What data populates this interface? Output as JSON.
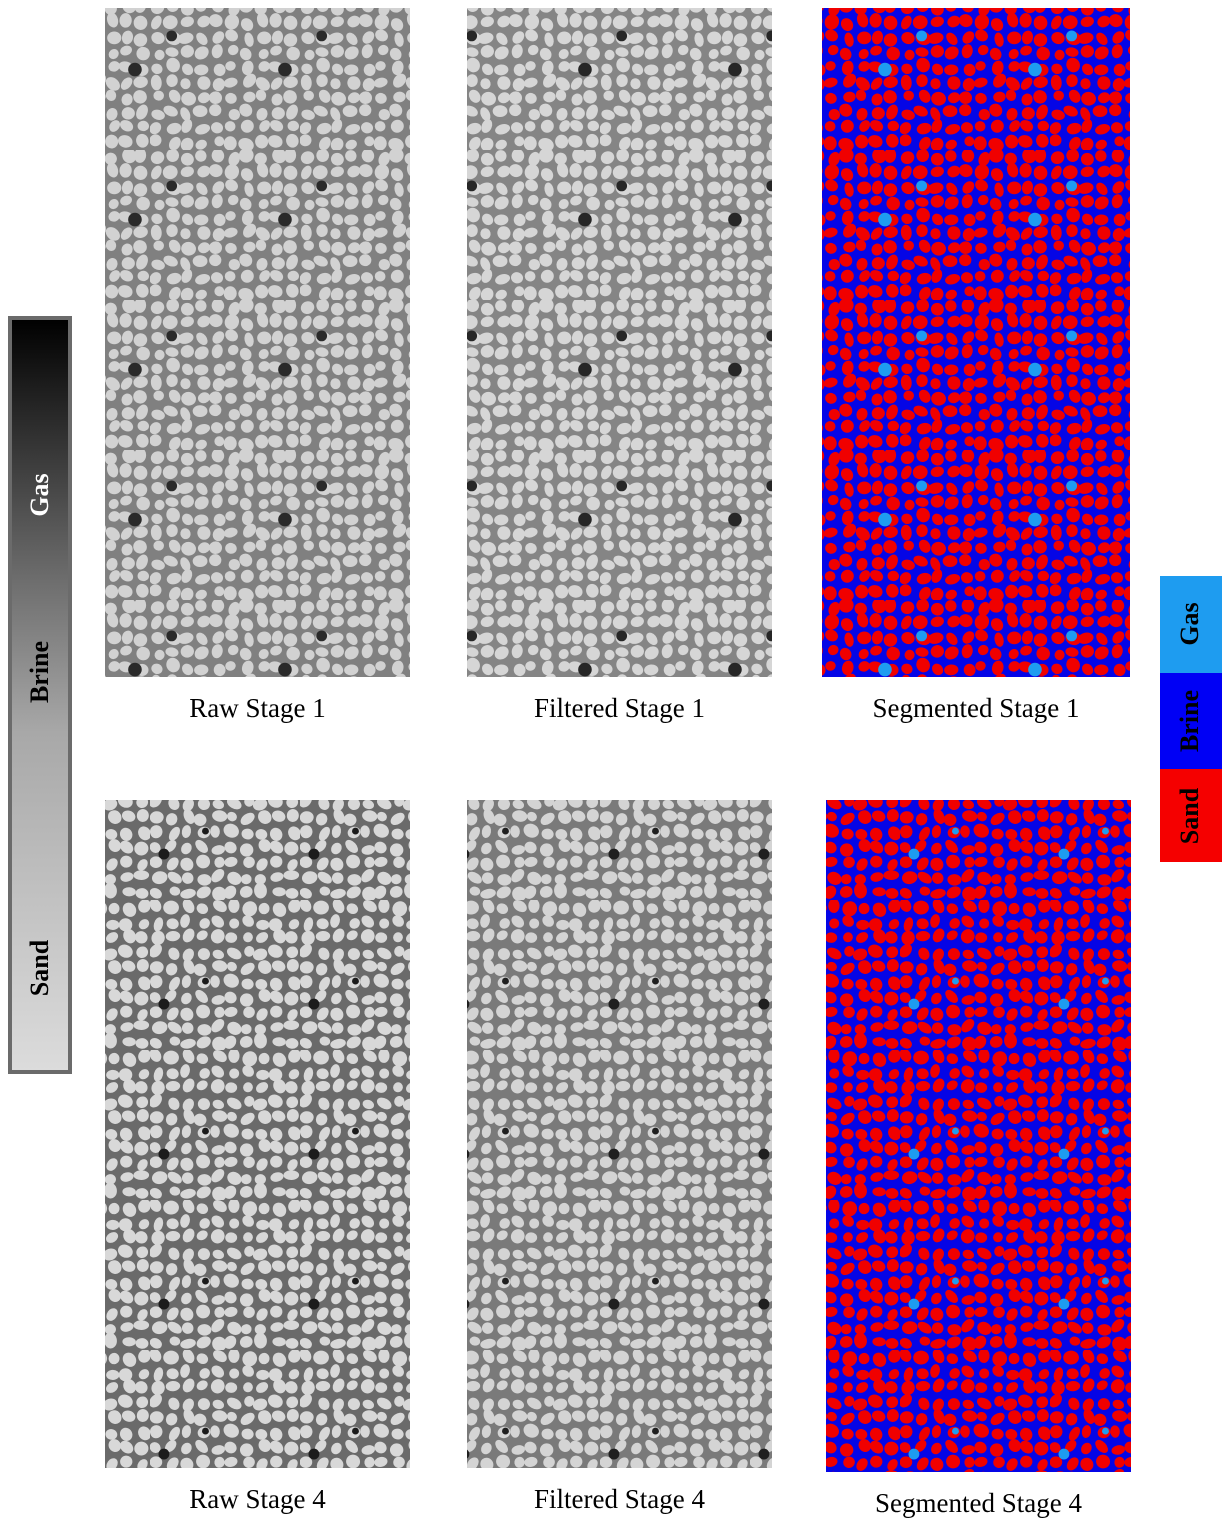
{
  "grayscale_bar": {
    "labels": [
      "Gas",
      "Brine",
      "Sand"
    ]
  },
  "panels": [
    {
      "caption": "Raw Stage 1"
    },
    {
      "caption": "Filtered Stage 1"
    },
    {
      "caption": "Segmented Stage 1"
    },
    {
      "caption": "Raw Stage 4"
    },
    {
      "caption": "Filtered Stage 4"
    },
    {
      "caption": "Segmented Stage 4"
    }
  ],
  "phase_legend": {
    "labels": [
      "Gas",
      "Brine",
      "Sand"
    ]
  }
}
